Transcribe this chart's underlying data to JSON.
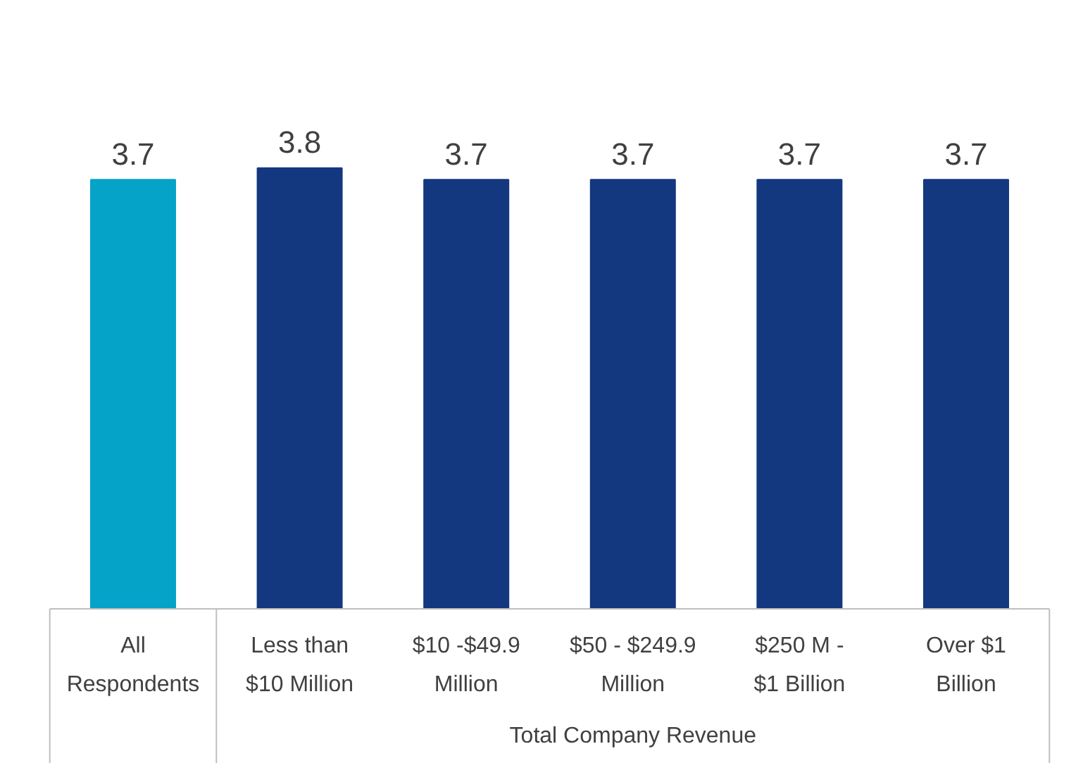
{
  "chart_data": {
    "type": "bar",
    "categories": [
      "All\nRespondents",
      "Less than\n$10 Million",
      "$10 -$49.9\nMillion",
      "$50 - $249.9\nMillion",
      "$250 M -\n$1 Billion",
      "Over $1\nBillion"
    ],
    "values": [
      3.7,
      3.8,
      3.7,
      3.7,
      3.7,
      3.7
    ],
    "colors": [
      "#06a3c8",
      "#14387f",
      "#14387f",
      "#14387f",
      "#14387f",
      "#14387f"
    ],
    "data_labels": true,
    "xlabel": "Total Company Revenue"
  }
}
